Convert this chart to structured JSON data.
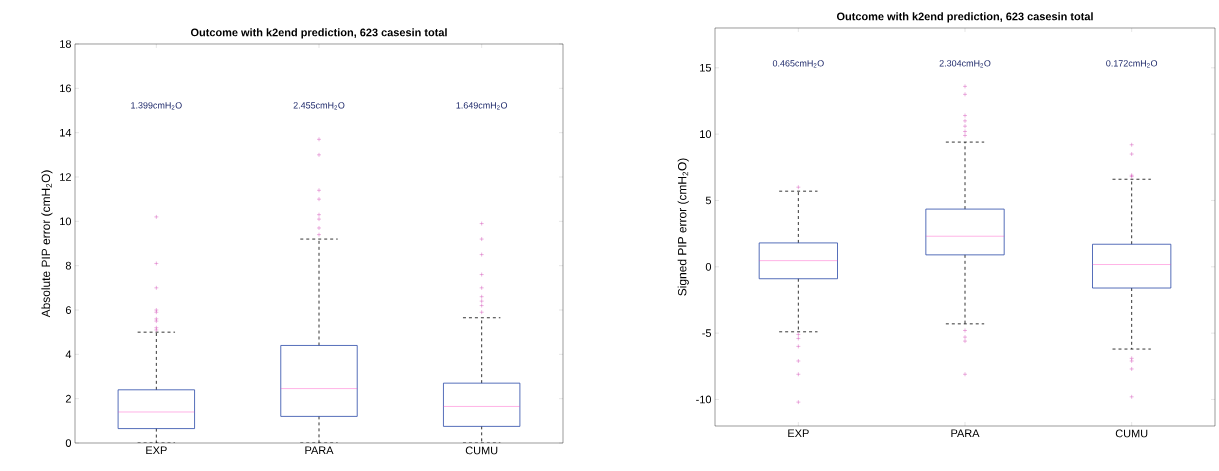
{
  "chart_data": [
    {
      "type": "box",
      "title": "Outcome with k2end prediction, 623 casesin total",
      "ylabel": "Absolute PIP error (cmH$_{2}$O)",
      "categories": [
        "EXP",
        "PARA",
        "CUMU"
      ],
      "boxes": [
        {
          "low": 0,
          "q1": 0.65,
          "median": 1.399,
          "q3": 2.4,
          "high": 5.0,
          "outliers": [
            10.2,
            8.1,
            7.0,
            6.0,
            5.9,
            5.6,
            5.5,
            5.2,
            5.1
          ]
        },
        {
          "low": 0,
          "q1": 1.2,
          "median": 2.455,
          "q3": 4.4,
          "high": 9.2,
          "outliers": [
            13.7,
            13.0,
            11.4,
            11.0,
            10.3,
            10.1,
            9.7,
            9.4
          ]
        },
        {
          "low": 0,
          "q1": 0.75,
          "median": 1.649,
          "q3": 2.7,
          "high": 5.65,
          "outliers": [
            9.9,
            9.2,
            8.5,
            7.6,
            7.0,
            6.6,
            6.4,
            6.2,
            5.9
          ]
        }
      ],
      "ylim": [
        0,
        18
      ],
      "yticks": [
        0,
        2,
        4,
        6,
        8,
        10,
        12,
        14,
        16,
        18
      ],
      "annotations": [
        "1.399cmH$_{2}$O",
        "2.455cmH$_{2}$O",
        "1.649cmH$_{2}$O"
      ]
    },
    {
      "type": "box",
      "title": "Outcome with k2end prediction, 623 casesin total",
      "ylabel": "Signed PIP error (cmH$_{2}$O)",
      "categories": [
        "EXP",
        "PARA",
        "CUMU"
      ],
      "boxes": [
        {
          "low": -4.9,
          "q1": -0.9,
          "median": 0.465,
          "q3": 1.8,
          "high": 5.7,
          "outliers": [
            6.0,
            -5.1,
            -5.4,
            -6.0,
            -7.1,
            -8.1,
            -10.2
          ]
        },
        {
          "low": -4.3,
          "q1": 0.9,
          "median": 2.304,
          "q3": 4.35,
          "high": 9.4,
          "outliers": [
            13.6,
            13.0,
            11.4,
            11.0,
            10.6,
            10.2,
            9.9,
            -4.8,
            -5.3,
            -5.6,
            -8.1
          ]
        },
        {
          "low": -6.2,
          "q1": -1.6,
          "median": 0.172,
          "q3": 1.7,
          "high": 6.6,
          "outliers": [
            9.2,
            8.5,
            6.9,
            6.8,
            -6.9,
            -7.1,
            -7.7,
            -9.8
          ]
        }
      ],
      "ylim": [
        -12,
        18
      ],
      "yticks": [
        -10,
        -5,
        0,
        5,
        10,
        15
      ],
      "annotations": [
        "0.465cmH$_{2}$O",
        "2.304cmH$_{2}$O",
        "0.172cmH$_{2}$O"
      ]
    }
  ]
}
